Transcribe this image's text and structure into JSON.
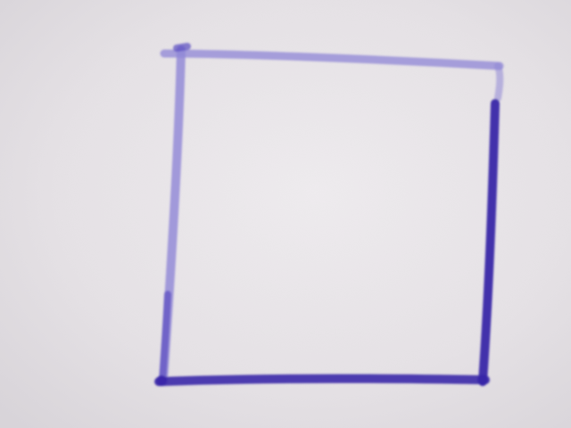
{
  "photo": {
    "subject": "hand-drawn-square",
    "colors": {
      "paper": "#e6e2e6",
      "paper_shadow": "#d9d5da",
      "paper_highlight": "#efecef",
      "ink_dark": "#3a28a8",
      "ink_mid": "#5a4cc0",
      "ink_light": "#8f86d6"
    }
  }
}
